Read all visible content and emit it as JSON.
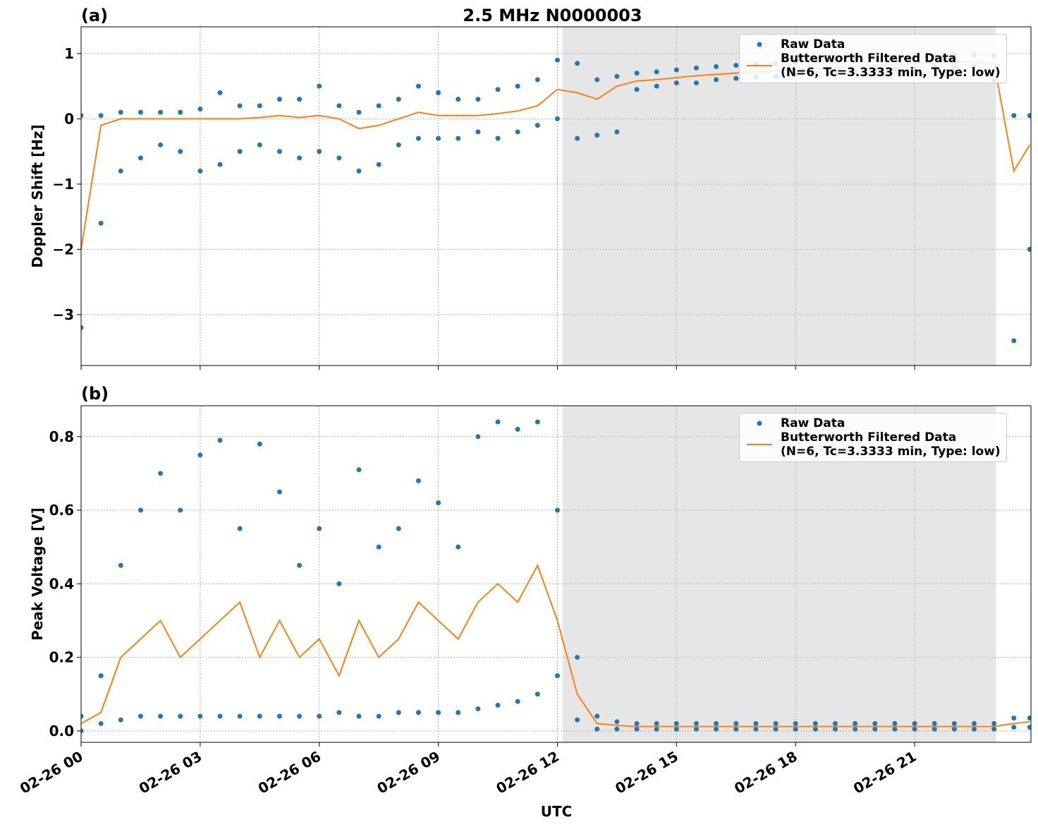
{
  "chart_data": [
    {
      "type": "scatter-line",
      "title": "2.5 MHz N0000003",
      "label": "(a)",
      "ylabel": "Doppler Shift [Hz]",
      "xlim": [
        0,
        23.93
      ],
      "ylim": [
        -3.78,
        1.41
      ],
      "yticks": [
        {
          "value": -3,
          "label": "−3"
        },
        {
          "value": -2,
          "label": "−2"
        },
        {
          "value": -1,
          "label": "−1"
        },
        0,
        1
      ],
      "grid": true,
      "legend": "upper right",
      "shade": [
        12.13,
        23.05
      ],
      "series": [
        {
          "name": "Raw Data",
          "kind": "scatter",
          "color": "#1f77b4",
          "x": [
            0,
            0.5,
            1,
            1.5,
            2,
            2.5,
            3,
            3.5,
            4,
            4.5,
            5,
            5.5,
            6,
            6.5,
            7,
            7.5,
            8,
            8.5,
            9,
            9.5,
            10,
            10.5,
            11,
            11.5,
            12,
            12.5,
            13,
            13.5,
            14,
            14.5,
            15,
            15.5,
            16,
            16.5,
            17,
            17.5,
            18,
            18.5,
            19,
            19.5,
            20,
            20.5,
            21,
            21.5,
            22,
            22.5,
            23,
            23.5,
            23.9,
            0,
            0.5,
            1,
            1.5,
            2,
            2.5,
            3,
            3.5,
            4,
            4.5,
            5,
            5.5,
            6,
            6.5,
            7,
            7.5,
            8,
            8.5,
            9,
            9.5,
            10,
            10.5,
            11,
            11.5,
            12,
            12.5,
            13,
            13.5,
            14,
            14.5,
            15,
            15.5,
            16,
            16.5,
            17,
            17.5,
            18,
            18.5,
            19,
            19.5,
            20,
            20.5,
            21,
            21.5,
            22,
            22.5,
            23,
            23.5,
            23.9
          ],
          "values": [
            0.05,
            0.05,
            0.1,
            0.1,
            0.1,
            0.1,
            0.15,
            0.4,
            0.2,
            0.2,
            0.3,
            0.3,
            0.5,
            0.2,
            0.1,
            0.2,
            0.3,
            0.5,
            0.4,
            0.3,
            0.3,
            0.45,
            0.5,
            0.6,
            0.9,
            0.85,
            0.6,
            0.65,
            0.7,
            0.72,
            0.75,
            0.78,
            0.8,
            0.82,
            0.84,
            0.85,
            0.86,
            0.88,
            0.9,
            0.92,
            0.94,
            0.95,
            0.96,
            0.97,
            0.98,
            0.98,
            0.97,
            0.05,
            0.05,
            -3.2,
            -1.6,
            -0.8,
            -0.6,
            -0.4,
            -0.5,
            -0.8,
            -0.7,
            -0.5,
            -0.4,
            -0.5,
            -0.6,
            -0.5,
            -0.6,
            -0.8,
            -0.7,
            -0.4,
            -0.3,
            -0.3,
            -0.3,
            -0.2,
            -0.3,
            -0.2,
            -0.1,
            0.0,
            -0.3,
            -0.25,
            -0.2,
            0.45,
            0.5,
            0.55,
            0.55,
            0.6,
            0.62,
            0.64,
            0.65,
            0.68,
            0.7,
            0.7,
            0.72,
            0.74,
            0.76,
            0.78,
            0.8,
            0.8,
            0.8,
            0.6,
            -3.4,
            -2.0
          ]
        },
        {
          "name": "Butterworth Filtered Data\n(N=6, Tc=3.3333 min, Type: low)",
          "kind": "line",
          "color": "#ff7f0e",
          "x": [
            0,
            0.5,
            1,
            1.5,
            2,
            2.5,
            3,
            3.5,
            4,
            4.5,
            5,
            5.5,
            6,
            6.5,
            7,
            7.5,
            8,
            8.5,
            9,
            9.5,
            10,
            10.5,
            11,
            11.5,
            12,
            12.5,
            13,
            13.5,
            14,
            14.5,
            15,
            15.5,
            16,
            16.5,
            17,
            17.5,
            18,
            18.5,
            19,
            19.5,
            20,
            20.5,
            21,
            21.5,
            22,
            22.5,
            23,
            23.5,
            23.9
          ],
          "values": [
            -2.0,
            -0.1,
            0,
            0,
            0,
            0,
            0,
            0,
            0,
            0.02,
            0.05,
            0.02,
            0.05,
            0,
            -0.15,
            -0.1,
            0,
            0.1,
            0.05,
            0.05,
            0.05,
            0.08,
            0.12,
            0.2,
            0.45,
            0.4,
            0.3,
            0.5,
            0.58,
            0.6,
            0.63,
            0.66,
            0.68,
            0.7,
            0.72,
            0.74,
            0.75,
            0.77,
            0.78,
            0.8,
            0.82,
            0.83,
            0.85,
            0.86,
            0.87,
            0.87,
            0.85,
            -0.8,
            -0.4
          ]
        }
      ]
    },
    {
      "type": "scatter-line",
      "label": "(b)",
      "ylabel": "Peak Voltage [V]",
      "xlabel": "UTC",
      "xlim": [
        0,
        23.93
      ],
      "ylim": [
        -0.031,
        0.884
      ],
      "xticks": [
        {
          "value": 0,
          "label": "02-26 00"
        },
        {
          "value": 3,
          "label": "02-26 03"
        },
        {
          "value": 6,
          "label": "02-26 06"
        },
        {
          "value": 9,
          "label": "02-26 09"
        },
        {
          "value": 12,
          "label": "02-26 12"
        },
        {
          "value": 15,
          "label": "02-26 15"
        },
        {
          "value": 18,
          "label": "02-26 18"
        },
        {
          "value": 21,
          "label": "02-26 21"
        }
      ],
      "yticks": [
        {
          "value": 0,
          "label": "0.0"
        },
        0.2,
        0.4,
        0.6,
        0.8
      ],
      "grid": true,
      "legend": "upper right",
      "shade": [
        12.13,
        23.05
      ],
      "series": [
        {
          "name": "Raw Data",
          "kind": "scatter",
          "color": "#1f77b4",
          "x": [
            0,
            0.5,
            1,
            1.5,
            2,
            2.5,
            3,
            3.5,
            4,
            4.5,
            5,
            5.5,
            6,
            6.5,
            7,
            7.5,
            8,
            8.5,
            9,
            9.5,
            10,
            10.5,
            11,
            11.5,
            12,
            12.5,
            13,
            13.5,
            14,
            14.5,
            15,
            15.5,
            16,
            16.5,
            17,
            17.5,
            18,
            18.5,
            19,
            19.5,
            20,
            20.5,
            21,
            21.5,
            22,
            22.5,
            23,
            23.5,
            23.9,
            0,
            0.5,
            1,
            1.5,
            2,
            2.5,
            3,
            3.5,
            4,
            4.5,
            5,
            5.5,
            6,
            6.5,
            7,
            7.5,
            8,
            8.5,
            9,
            9.5,
            10,
            10.5,
            11,
            11.5,
            12,
            12.5,
            13,
            13.5,
            14,
            14.5,
            15,
            15.5,
            16,
            16.5,
            17,
            17.5,
            18,
            18.5,
            19,
            19.5,
            20,
            20.5,
            21,
            21.5,
            22,
            22.5,
            23,
            23.5,
            23.9
          ],
          "values": [
            0.04,
            0.15,
            0.45,
            0.6,
            0.7,
            0.6,
            0.75,
            0.79,
            0.55,
            0.78,
            0.65,
            0.45,
            0.55,
            0.4,
            0.71,
            0.5,
            0.55,
            0.68,
            0.62,
            0.5,
            0.8,
            0.84,
            0.82,
            0.84,
            0.6,
            0.2,
            0.04,
            0.025,
            0.02,
            0.02,
            0.02,
            0.02,
            0.02,
            0.02,
            0.02,
            0.02,
            0.02,
            0.02,
            0.02,
            0.02,
            0.02,
            0.02,
            0.02,
            0.02,
            0.02,
            0.02,
            0.02,
            0.035,
            0.035,
            0.0,
            0.02,
            0.03,
            0.04,
            0.04,
            0.04,
            0.04,
            0.04,
            0.04,
            0.04,
            0.04,
            0.04,
            0.04,
            0.05,
            0.04,
            0.04,
            0.05,
            0.05,
            0.05,
            0.05,
            0.06,
            0.07,
            0.08,
            0.1,
            0.15,
            0.03,
            0.005,
            0.005,
            0.005,
            0.005,
            0.005,
            0.005,
            0.005,
            0.005,
            0.005,
            0.005,
            0.005,
            0.005,
            0.005,
            0.005,
            0.005,
            0.005,
            0.005,
            0.005,
            0.005,
            0.005,
            0.005,
            0.01,
            0.01
          ]
        },
        {
          "name": "Butterworth Filtered Data\n(N=6, Tc=3.3333 min, Type: low)",
          "kind": "line",
          "color": "#ff7f0e",
          "x": [
            0,
            0.5,
            1,
            1.5,
            2,
            2.5,
            3,
            3.5,
            4,
            4.5,
            5,
            5.5,
            6,
            6.5,
            7,
            7.5,
            8,
            8.5,
            9,
            9.5,
            10,
            10.5,
            11,
            11.5,
            12,
            12.5,
            13,
            13.5,
            14,
            14.5,
            15,
            15.5,
            16,
            16.5,
            17,
            17.5,
            18,
            18.5,
            19,
            19.5,
            20,
            20.5,
            21,
            21.5,
            22,
            22.5,
            23,
            23.5,
            23.9
          ],
          "values": [
            0.02,
            0.05,
            0.2,
            0.25,
            0.3,
            0.2,
            0.25,
            0.3,
            0.35,
            0.2,
            0.3,
            0.2,
            0.25,
            0.15,
            0.3,
            0.2,
            0.25,
            0.35,
            0.3,
            0.25,
            0.35,
            0.4,
            0.35,
            0.45,
            0.3,
            0.1,
            0.02,
            0.015,
            0.012,
            0.012,
            0.012,
            0.012,
            0.012,
            0.012,
            0.012,
            0.012,
            0.012,
            0.012,
            0.012,
            0.012,
            0.012,
            0.012,
            0.012,
            0.012,
            0.012,
            0.012,
            0.012,
            0.02,
            0.025
          ]
        }
      ]
    }
  ]
}
